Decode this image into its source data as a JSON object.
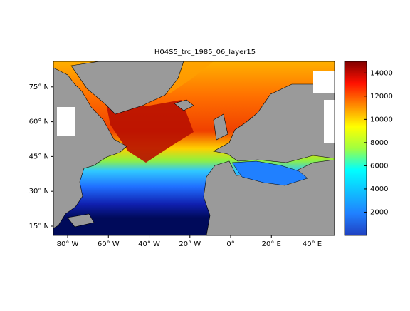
{
  "chart_data": {
    "type": "map",
    "title": "H04S5_trc_1985_06_layer15",
    "xlim": [
      -87,
      51
    ],
    "ylim": [
      11,
      86
    ],
    "xticks": [
      {
        "value": -80,
        "label": "80° W"
      },
      {
        "value": -60,
        "label": "60° W"
      },
      {
        "value": -40,
        "label": "40° W"
      },
      {
        "value": -20,
        "label": "20° W"
      },
      {
        "value": 0,
        "label": "0°"
      },
      {
        "value": 20,
        "label": "20° E"
      },
      {
        "value": 40,
        "label": "40° E"
      }
    ],
    "yticks": [
      {
        "value": 15,
        "label": "15° N"
      },
      {
        "value": 30,
        "label": "30° N"
      },
      {
        "value": 45,
        "label": "45° N"
      },
      {
        "value": 60,
        "label": "60° N"
      },
      {
        "value": 75,
        "label": "75° N"
      }
    ],
    "clim": [
      0,
      15000
    ],
    "colorbar_ticks": [
      2000,
      4000,
      6000,
      8000,
      10000,
      12000,
      14000
    ]
  }
}
